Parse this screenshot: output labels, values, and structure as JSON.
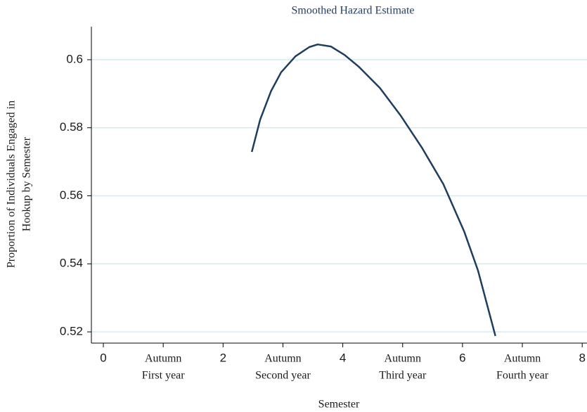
{
  "chart_data": {
    "type": "line",
    "title": "Smoothed Hazard Estimate",
    "xlabel": "Semester",
    "ylabel": [
      "Proportion of Individuals Engaged in",
      "Hookup by Semester"
    ],
    "x": [
      2.48,
      2.62,
      2.8,
      2.97,
      3.21,
      3.44,
      3.58,
      3.8,
      4.03,
      4.27,
      4.62,
      4.97,
      5.32,
      5.68,
      6.03,
      6.26,
      6.55
    ],
    "series": [
      {
        "color": "#1f3d5e",
        "values": [
          0.5729,
          0.5824,
          0.5907,
          0.5963,
          0.601,
          0.6037,
          0.6045,
          0.6039,
          0.6014,
          0.5979,
          0.5917,
          0.5835,
          0.5742,
          0.5634,
          0.5494,
          0.538,
          0.5188
        ]
      }
    ],
    "xlim": [
      -0.2,
      8.08
    ],
    "xticks": [
      0,
      {
        "value": 1,
        "label": [
          "Autumn",
          "First year"
        ]
      },
      2,
      {
        "value": 3,
        "label": [
          "Autumn",
          "Second year"
        ]
      },
      4,
      {
        "value": 5,
        "label": [
          "Autumn",
          "Third year"
        ]
      },
      6,
      {
        "value": 7,
        "label": [
          "Autumn",
          "Fourth year"
        ]
      },
      8
    ],
    "ylim": [
      0.5167,
      0.6097
    ],
    "yticks": [
      0.52,
      0.54,
      0.56,
      0.58,
      0.6
    ],
    "grid": true,
    "grid_color": "#d5ebf0",
    "title_color": "#1f3d5e"
  }
}
